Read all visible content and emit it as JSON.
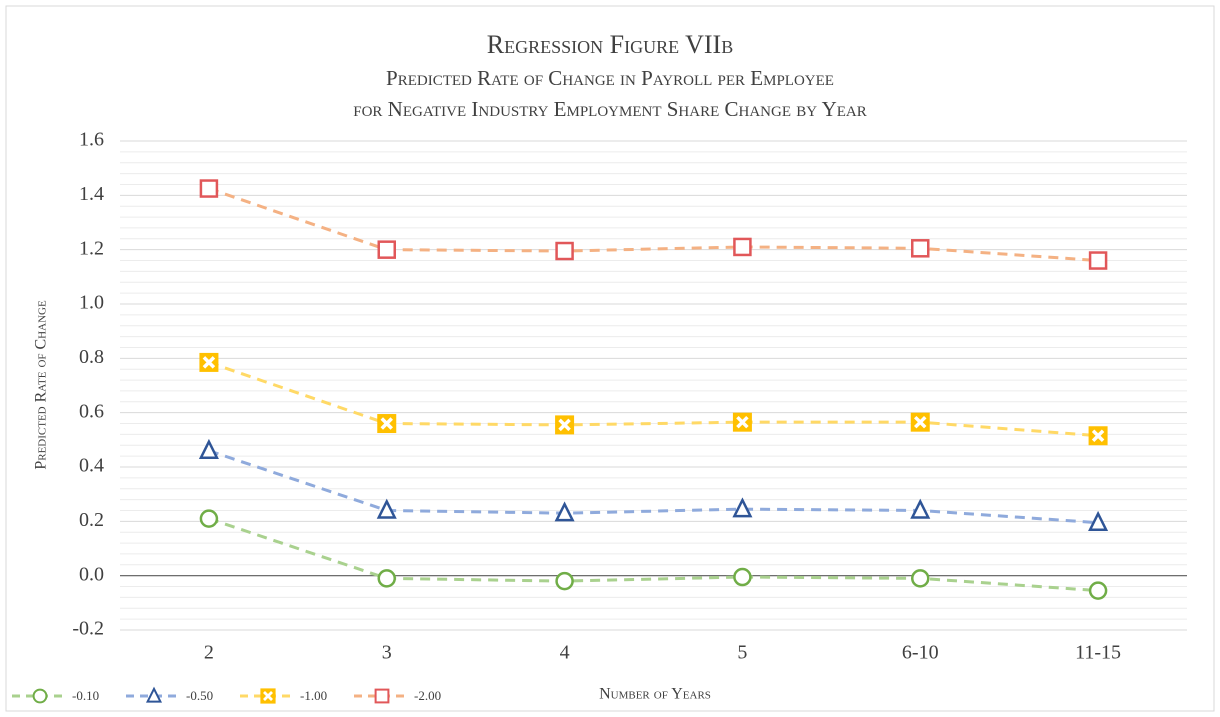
{
  "chart_data": {
    "type": "line",
    "title": "Regression Figure VIIb",
    "subtitle": [
      "Predicted Rate of Change in Payroll per Employee",
      "for Negative Industry Employment Share Change by Year"
    ],
    "x_label": "Number of Years",
    "y_label": "Predicted Rate of Change",
    "categories": [
      "2",
      "3",
      "4",
      "5",
      "6-10",
      "11-15"
    ],
    "series": [
      {
        "name": "-0.10",
        "color": "#70ad47",
        "line_color": "#a9d18e",
        "marker": "circle",
        "values": [
          0.21,
          -0.01,
          -0.02,
          -0.005,
          -0.01,
          -0.055
        ]
      },
      {
        "name": "-0.50",
        "color": "#2f5597",
        "line_color": "#8faadc",
        "marker": "triangle",
        "values": [
          0.46,
          0.24,
          0.23,
          0.245,
          0.24,
          0.195
        ]
      },
      {
        "name": "-1.00",
        "color": "#ffc000",
        "line_color": "#ffd966",
        "marker": "xsquare",
        "values": [
          0.785,
          0.56,
          0.555,
          0.565,
          0.565,
          0.515
        ]
      },
      {
        "name": "-2.00",
        "color": "#e15759",
        "line_color": "#f4b183",
        "marker": "square",
        "values": [
          1.425,
          1.2,
          1.195,
          1.21,
          1.205,
          1.16
        ]
      }
    ],
    "ylim": [
      -0.2,
      1.6
    ],
    "yticks": [
      -0.2,
      {
        "value": 0,
        "label": "0.0"
      },
      0.2,
      0.4,
      0.6,
      0.8,
      {
        "value": 1,
        "label": "1.0"
      },
      1.2,
      1.4,
      1.6
    ],
    "grid": true,
    "legend": "bottom-left"
  }
}
